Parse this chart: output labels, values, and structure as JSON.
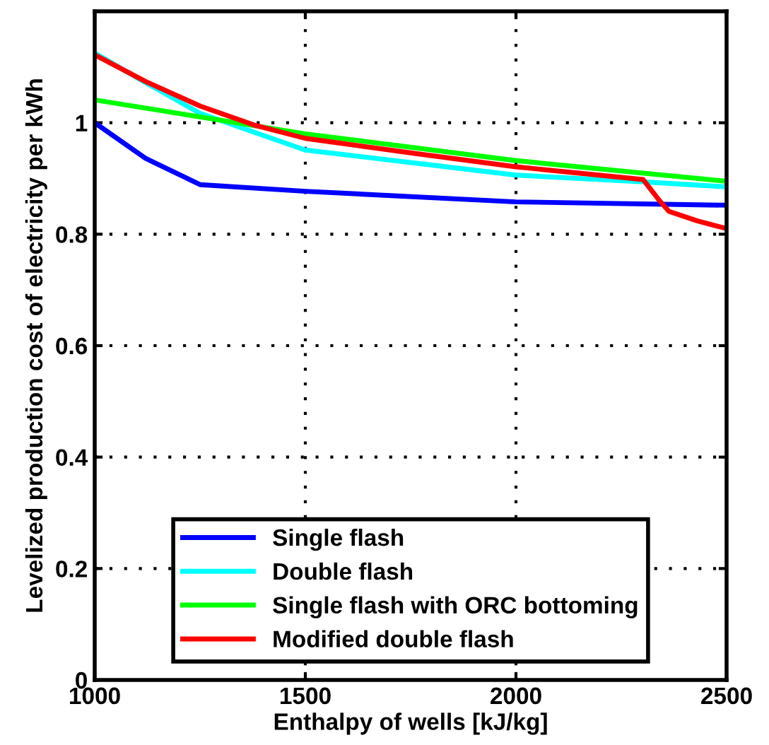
{
  "chart_data": {
    "type": "line",
    "xlabel": "Enthalpy of wells [kJ/kg]",
    "ylabel": "Levelized production cost of electricity per kWh",
    "xlim": [
      1000,
      2500
    ],
    "xticks": [
      1000,
      1500,
      2000,
      2500
    ],
    "ylim": [
      0,
      1.2
    ],
    "yticks": [
      0,
      0.2,
      0.4,
      0.6,
      0.8,
      1
    ],
    "grid": true,
    "legend": "bottom",
    "line_style": "solid",
    "marker": "none",
    "series": [
      {
        "name": "Single flash",
        "color": "#0000ff",
        "x": [
          1000,
          1121,
          1250,
          1500,
          2000,
          2500
        ],
        "values": [
          1.0,
          0.936,
          0.889,
          0.877,
          0.858,
          0.852
        ]
      },
      {
        "name": "Double flash",
        "color": "#00ffff",
        "x": [
          1000,
          1121,
          1250,
          1378,
          1500,
          2000,
          2302,
          2500
        ],
        "values": [
          1.125,
          1.072,
          1.017,
          0.983,
          0.951,
          0.906,
          0.894,
          0.885
        ]
      },
      {
        "name": "Single flash with ORC bottoming",
        "color": "#00ff00",
        "x": [
          1000,
          1500,
          2000,
          2500
        ],
        "values": [
          1.041,
          0.98,
          0.932,
          0.895
        ]
      },
      {
        "name": "Modified double flash",
        "color": "#ff0000",
        "x": [
          1000,
          1121,
          1250,
          1378,
          1500,
          1759,
          2000,
          2302,
          2341,
          2363,
          2430,
          2500
        ],
        "values": [
          1.122,
          1.074,
          1.03,
          0.996,
          0.972,
          0.945,
          0.921,
          0.898,
          0.86,
          0.841,
          0.824,
          0.81
        ]
      }
    ]
  }
}
